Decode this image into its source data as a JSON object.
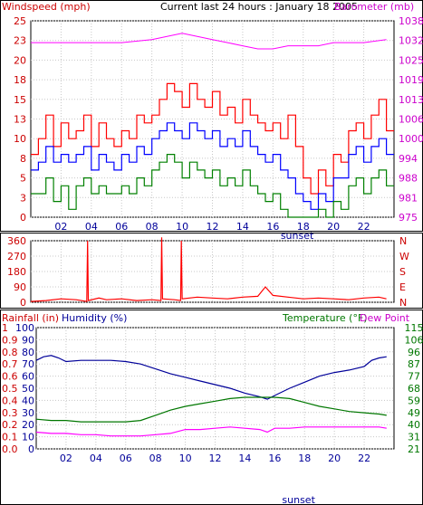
{
  "chart_data": [
    {
      "type": "line",
      "title": "Current last 24 hours : January 18 2005",
      "ylabel_left": "Windspeed (mph)",
      "ylabel_right": "Barometer (mb)",
      "left_ticks": [
        0,
        3,
        5,
        8,
        10,
        13,
        15,
        18,
        20,
        23,
        25
      ],
      "right_ticks": [
        975,
        981,
        988,
        994,
        1000,
        1006,
        1013,
        1019,
        1025,
        1032,
        1038
      ],
      "ylim_left": [
        0,
        25
      ],
      "ylim_right": [
        975,
        1038
      ],
      "x_ticks": [
        "02",
        "04",
        "06",
        "08",
        "10",
        "12",
        "14",
        "16",
        "18",
        "20",
        "22"
      ],
      "x_hours": [
        2,
        4,
        6,
        8,
        10,
        12,
        14,
        16,
        18,
        20,
        22
      ],
      "xlim": [
        0,
        24
      ],
      "annotation": "sunset",
      "annotation_x": 17.6,
      "series": [
        {
          "key": "gust",
          "color": "#ff0000",
          "x": [
            0,
            0.5,
            1,
            1.5,
            2,
            2.5,
            3,
            3.5,
            4,
            4.5,
            5,
            5.5,
            6,
            6.5,
            7,
            7.5,
            8,
            8.5,
            9,
            9.5,
            10,
            10.5,
            11,
            11.5,
            12,
            12.5,
            13,
            13.5,
            14,
            14.5,
            15,
            15.5,
            16,
            16.5,
            17,
            17.5,
            18,
            18.5,
            19,
            19.5,
            20,
            20.5,
            21,
            21.5,
            22,
            22.5,
            23,
            23.5
          ],
          "values": [
            8,
            10,
            13,
            9,
            12,
            10,
            11,
            13,
            9,
            12,
            10,
            9,
            11,
            10,
            13,
            12,
            13,
            15,
            17,
            16,
            14,
            17,
            15,
            14,
            16,
            13,
            14,
            12,
            15,
            13,
            12,
            11,
            12,
            10,
            13,
            9,
            5,
            3,
            6,
            4,
            8,
            7,
            11,
            12,
            10,
            13,
            15,
            11
          ]
        },
        {
          "key": "avg",
          "color": "#0000ff",
          "x": [
            0,
            0.5,
            1,
            1.5,
            2,
            2.5,
            3,
            3.5,
            4,
            4.5,
            5,
            5.5,
            6,
            6.5,
            7,
            7.5,
            8,
            8.5,
            9,
            9.5,
            10,
            10.5,
            11,
            11.5,
            12,
            12.5,
            13,
            13.5,
            14,
            14.5,
            15,
            15.5,
            16,
            16.5,
            17,
            17.5,
            18,
            18.5,
            19,
            19.5,
            20,
            20.5,
            21,
            21.5,
            22,
            22.5,
            23,
            23.5
          ],
          "values": [
            6,
            7,
            9,
            7,
            8,
            7,
            8,
            9,
            6,
            8,
            7,
            6,
            8,
            7,
            9,
            8,
            10,
            11,
            12,
            11,
            10,
            12,
            11,
            10,
            11,
            9,
            10,
            9,
            11,
            9,
            8,
            7,
            8,
            6,
            5,
            3,
            2,
            1,
            3,
            2,
            5,
            5,
            8,
            9,
            7,
            9,
            10,
            8
          ]
        },
        {
          "key": "low",
          "color": "#008000",
          "x": [
            0,
            0.5,
            1,
            1.5,
            2,
            2.5,
            3,
            3.5,
            4,
            4.5,
            5,
            5.5,
            6,
            6.5,
            7,
            7.5,
            8,
            8.5,
            9,
            9.5,
            10,
            10.5,
            11,
            11.5,
            12,
            12.5,
            13,
            13.5,
            14,
            14.5,
            15,
            15.5,
            16,
            16.5,
            17,
            17.5,
            18,
            18.5,
            19,
            19.5,
            20,
            20.5,
            21,
            21.5,
            22,
            22.5,
            23,
            23.5
          ],
          "values": [
            3,
            3,
            5,
            2,
            4,
            1,
            4,
            5,
            3,
            4,
            3,
            3,
            4,
            3,
            5,
            4,
            6,
            7,
            8,
            7,
            5,
            7,
            6,
            5,
            6,
            4,
            5,
            4,
            6,
            4,
            3,
            2,
            3,
            1,
            0,
            0,
            0,
            0,
            1,
            0,
            2,
            1,
            4,
            5,
            3,
            5,
            6,
            4
          ]
        },
        {
          "key": "baro",
          "axis": "right",
          "color": "#ff00ff",
          "x": [
            0,
            2,
            4,
            6,
            8,
            9,
            10,
            11,
            12,
            13,
            14,
            15,
            16,
            17,
            18,
            19,
            20,
            21,
            22,
            23.5
          ],
          "values": [
            1031,
            1031,
            1031,
            1031,
            1032,
            1033,
            1034,
            1033,
            1032,
            1031,
            1030,
            1029,
            1029,
            1030,
            1030,
            1030,
            1031,
            1031,
            1031,
            1032
          ]
        }
      ]
    },
    {
      "type": "line",
      "left_ticks": [
        "360",
        "270",
        "180",
        "90",
        "0"
      ],
      "right_ticks": [
        "N",
        "W",
        "S",
        "E",
        "N"
      ],
      "ylim": [
        0,
        360
      ],
      "xlim": [
        0,
        24
      ],
      "series": [
        {
          "key": "direction",
          "color": "#ff0000",
          "x": [
            0,
            1,
            2,
            3,
            3.7,
            3.75,
            3.8,
            4.5,
            5,
            6,
            7,
            8,
            8.6,
            8.65,
            8.7,
            9.5,
            9.9,
            9.95,
            10,
            11,
            12,
            13,
            14,
            15,
            15.5,
            16,
            17,
            18,
            19,
            20,
            21,
            22,
            23,
            23.5
          ],
          "values": [
            5,
            10,
            20,
            15,
            5,
            360,
            10,
            25,
            15,
            20,
            10,
            15,
            10,
            380,
            20,
            15,
            10,
            360,
            20,
            30,
            25,
            20,
            30,
            35,
            90,
            40,
            30,
            20,
            25,
            20,
            15,
            25,
            30,
            20
          ]
        }
      ]
    },
    {
      "type": "line",
      "ylabel_left": "Rainfall (in)",
      "ylabel_humidity": "Humidity (%)",
      "ylabel_right": "Temperature (°F)",
      "ylabel_dew": "Dew Point",
      "rain_ticks": [
        "1",
        "0.9",
        "0.8",
        "0.7",
        "0.6",
        "0.5",
        "0.4",
        "0.3",
        "0.2",
        "0.1",
        "0.0"
      ],
      "humidity_ticks": [
        "100",
        "90",
        "80",
        "70",
        "60",
        "50",
        "40",
        "30",
        "20",
        "10",
        "0"
      ],
      "temp_ticks": [
        "115",
        "106",
        "96",
        "87",
        "77",
        "68",
        "59",
        "49",
        "40",
        "31",
        "21"
      ],
      "ylim_humidity": [
        0,
        100
      ],
      "ylim_temp": [
        21,
        115
      ],
      "x_ticks": [
        "02",
        "04",
        "06",
        "08",
        "10",
        "12",
        "14",
        "16",
        "18",
        "20",
        "22"
      ],
      "x_hours": [
        2,
        4,
        6,
        8,
        10,
        12,
        14,
        16,
        18,
        20,
        22
      ],
      "xlim": [
        0,
        24
      ],
      "annotation": "sunset",
      "annotation_x": 17.6,
      "series": [
        {
          "key": "humidity",
          "axis": "left",
          "color": "#000099",
          "x": [
            0,
            0.5,
            1,
            1.5,
            2,
            3,
            4,
            5,
            6,
            7,
            8,
            9,
            10,
            11,
            12,
            13,
            14,
            15,
            15.5,
            16,
            17,
            18,
            19,
            20,
            21,
            22,
            22.5,
            23,
            23.5
          ],
          "values": [
            73,
            76,
            77,
            75,
            72,
            73,
            73,
            73,
            72,
            70,
            66,
            62,
            59,
            56,
            53,
            50,
            46,
            43,
            41,
            44,
            50,
            55,
            60,
            63,
            65,
            68,
            73,
            75,
            76
          ]
        },
        {
          "key": "temperature",
          "axis": "right",
          "color": "#007700",
          "x": [
            0,
            1,
            2,
            3,
            4,
            5,
            6,
            7,
            8,
            9,
            10,
            11,
            12,
            13,
            14,
            15,
            16,
            17,
            18,
            19,
            20,
            21,
            22,
            23,
            23.5
          ],
          "values": [
            44,
            43,
            43,
            42,
            42,
            42,
            42,
            43,
            47,
            51,
            54,
            56,
            58,
            60,
            61,
            61,
            61,
            60,
            57,
            54,
            52,
            50,
            49,
            48,
            47
          ]
        },
        {
          "key": "dewpoint",
          "axis": "right",
          "color": "#ff00ff",
          "x": [
            0,
            1,
            2,
            3,
            4,
            5,
            6,
            7,
            8,
            9,
            10,
            11,
            12,
            13,
            14,
            15,
            15.5,
            16,
            17,
            18,
            19,
            20,
            21,
            22,
            23,
            23.5
          ],
          "values": [
            34,
            33,
            33,
            32,
            32,
            31,
            31,
            31,
            32,
            33,
            36,
            36,
            37,
            38,
            37,
            36,
            34,
            37,
            37,
            38,
            38,
            38,
            38,
            38,
            38,
            37
          ]
        }
      ]
    }
  ]
}
